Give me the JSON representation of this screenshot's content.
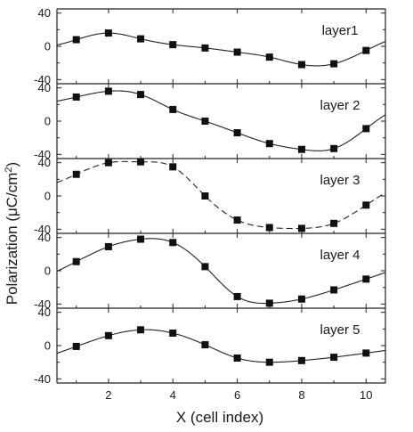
{
  "chart_data": {
    "type": "line",
    "xlabel": "X (cell index)",
    "ylabel_main": "Polarization (",
    "ylabel_mu": "μ",
    "ylabel_unit": "C/cm",
    "ylabel_sup": "2",
    "ylabel_close": ")",
    "xlim": [
      0.4,
      10.6
    ],
    "ylim": [
      -45,
      45
    ],
    "x_ticks": [
      2,
      4,
      6,
      8,
      10
    ],
    "y_ticks": [
      -40,
      0,
      40
    ],
    "x": [
      1,
      2,
      3,
      4,
      5,
      6,
      7,
      8,
      9,
      10
    ],
    "panels": [
      {
        "label": "layer1",
        "line_style": "solid",
        "values": [
          8,
          16,
          9,
          2,
          -2,
          -7,
          -13,
          -22,
          -21,
          -5
        ]
      },
      {
        "label": "layer 2",
        "line_style": "solid",
        "values": [
          29,
          36,
          32,
          14,
          0,
          -14,
          -27,
          -34,
          -33,
          -9
        ]
      },
      {
        "label": "layer 3",
        "line_style": "dashed",
        "values": [
          26,
          40,
          41,
          35,
          0,
          -29,
          -38,
          -39,
          -33,
          -11
        ]
      },
      {
        "label": "layer 4",
        "line_style": "solid",
        "values": [
          11,
          29,
          38,
          34,
          5,
          -31,
          -39,
          -34,
          -23,
          -10
        ]
      },
      {
        "label": "layer 5",
        "line_style": "solid",
        "values": [
          -1,
          12,
          19,
          15,
          1,
          -15,
          -20,
          -18,
          -14,
          -9
        ]
      }
    ]
  }
}
